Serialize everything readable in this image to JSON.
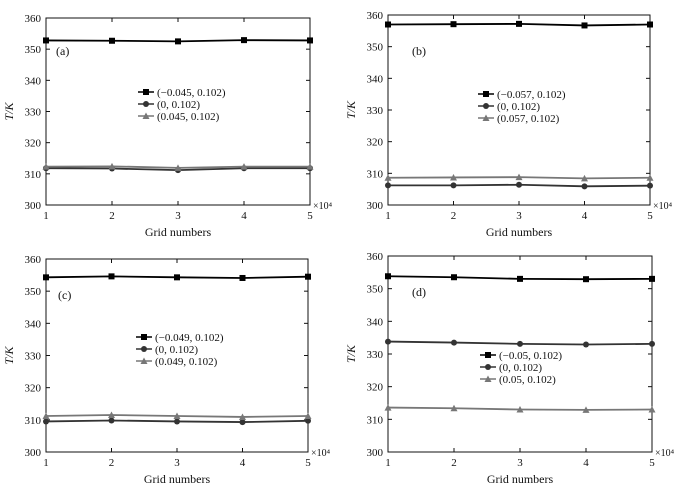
{
  "exponent_label": "×10⁴",
  "chart_data": [
    {
      "panel": "(a)",
      "type": "line",
      "xlabel": "Grid numbers",
      "ylabel": "T/K",
      "xlim": [
        1,
        5
      ],
      "ylim": [
        300,
        360
      ],
      "xticks": [
        "1",
        "2",
        "3",
        "4",
        "5"
      ],
      "yticks": [
        "300",
        "310",
        "320",
        "330",
        "340",
        "350",
        "360"
      ],
      "x": [
        1,
        2,
        3,
        4,
        5
      ],
      "legend_position": "middle",
      "series": [
        {
          "name": "(−0.045, 0.102)",
          "marker": "square",
          "color": "#000000",
          "values": [
            352.8,
            352.7,
            352.5,
            352.9,
            352.8
          ]
        },
        {
          "name": "(0, 0.102)",
          "marker": "circle",
          "color": "#333333",
          "values": [
            311.8,
            311.7,
            311.2,
            311.8,
            311.8
          ]
        },
        {
          "name": "(0.045, 0.102)",
          "marker": "triangle",
          "color": "#777777",
          "values": [
            312.3,
            312.4,
            311.9,
            312.3,
            312.3
          ]
        }
      ]
    },
    {
      "panel": "(b)",
      "type": "line",
      "xlabel": "Grid numbers",
      "ylabel": "T/K",
      "xlim": [
        1,
        5
      ],
      "ylim": [
        300,
        360
      ],
      "xticks": [
        "1",
        "2",
        "3",
        "4",
        "5"
      ],
      "yticks": [
        "300",
        "310",
        "320",
        "330",
        "340",
        "350",
        "360"
      ],
      "x": [
        1,
        2,
        3,
        4,
        5
      ],
      "legend_position": "middle-right",
      "series": [
        {
          "name": "(−0.057, 0.102)",
          "marker": "square",
          "color": "#000000",
          "values": [
            357.0,
            357.1,
            357.2,
            356.7,
            357.0
          ]
        },
        {
          "name": "(0, 0.102)",
          "marker": "circle",
          "color": "#333333",
          "values": [
            306.2,
            306.2,
            306.4,
            305.9,
            306.1
          ]
        },
        {
          "name": "(0.057, 0.102)",
          "marker": "triangle",
          "color": "#777777",
          "values": [
            308.6,
            308.7,
            308.8,
            308.4,
            308.6
          ]
        }
      ]
    },
    {
      "panel": "(c)",
      "type": "line",
      "xlabel": "Grid numbers",
      "ylabel": "T/K",
      "xlim": [
        1,
        5
      ],
      "ylim": [
        300,
        360
      ],
      "xticks": [
        "1",
        "2",
        "3",
        "4",
        "5"
      ],
      "yticks": [
        "300",
        "310",
        "320",
        "330",
        "340",
        "350",
        "360"
      ],
      "x": [
        1,
        2,
        3,
        4,
        5
      ],
      "legend_position": "middle",
      "series": [
        {
          "name": "(−0.049, 0.102)",
          "marker": "square",
          "color": "#000000",
          "values": [
            354.3,
            354.6,
            354.3,
            354.1,
            354.5
          ]
        },
        {
          "name": "(0, 0.102)",
          "marker": "circle",
          "color": "#333333",
          "values": [
            309.5,
            309.8,
            309.5,
            309.3,
            309.7
          ]
        },
        {
          "name": "(0.049, 0.102)",
          "marker": "triangle",
          "color": "#777777",
          "values": [
            311.2,
            311.5,
            311.2,
            310.9,
            311.2
          ]
        }
      ]
    },
    {
      "panel": "(d)",
      "type": "line",
      "xlabel": "Grid numbers",
      "ylabel": "T/K",
      "xlim": [
        1,
        5
      ],
      "ylim": [
        300,
        360
      ],
      "xticks": [
        "1",
        "2",
        "3",
        "4",
        "5"
      ],
      "yticks": [
        "300",
        "310",
        "320",
        "330",
        "340",
        "350",
        "360"
      ],
      "x": [
        1,
        2,
        3,
        4,
        5
      ],
      "legend_position": "middle-right",
      "series": [
        {
          "name": "(−0.05, 0.102)",
          "marker": "square",
          "color": "#000000",
          "values": [
            353.8,
            353.5,
            353.0,
            352.9,
            353.0
          ]
        },
        {
          "name": "(0, 0.102)",
          "marker": "circle",
          "color": "#333333",
          "values": [
            333.8,
            333.5,
            333.1,
            332.9,
            333.1
          ]
        },
        {
          "name": "(0.05, 0.102)",
          "marker": "triangle",
          "color": "#777777",
          "values": [
            313.6,
            313.4,
            313.0,
            312.9,
            313.0
          ]
        }
      ]
    }
  ]
}
